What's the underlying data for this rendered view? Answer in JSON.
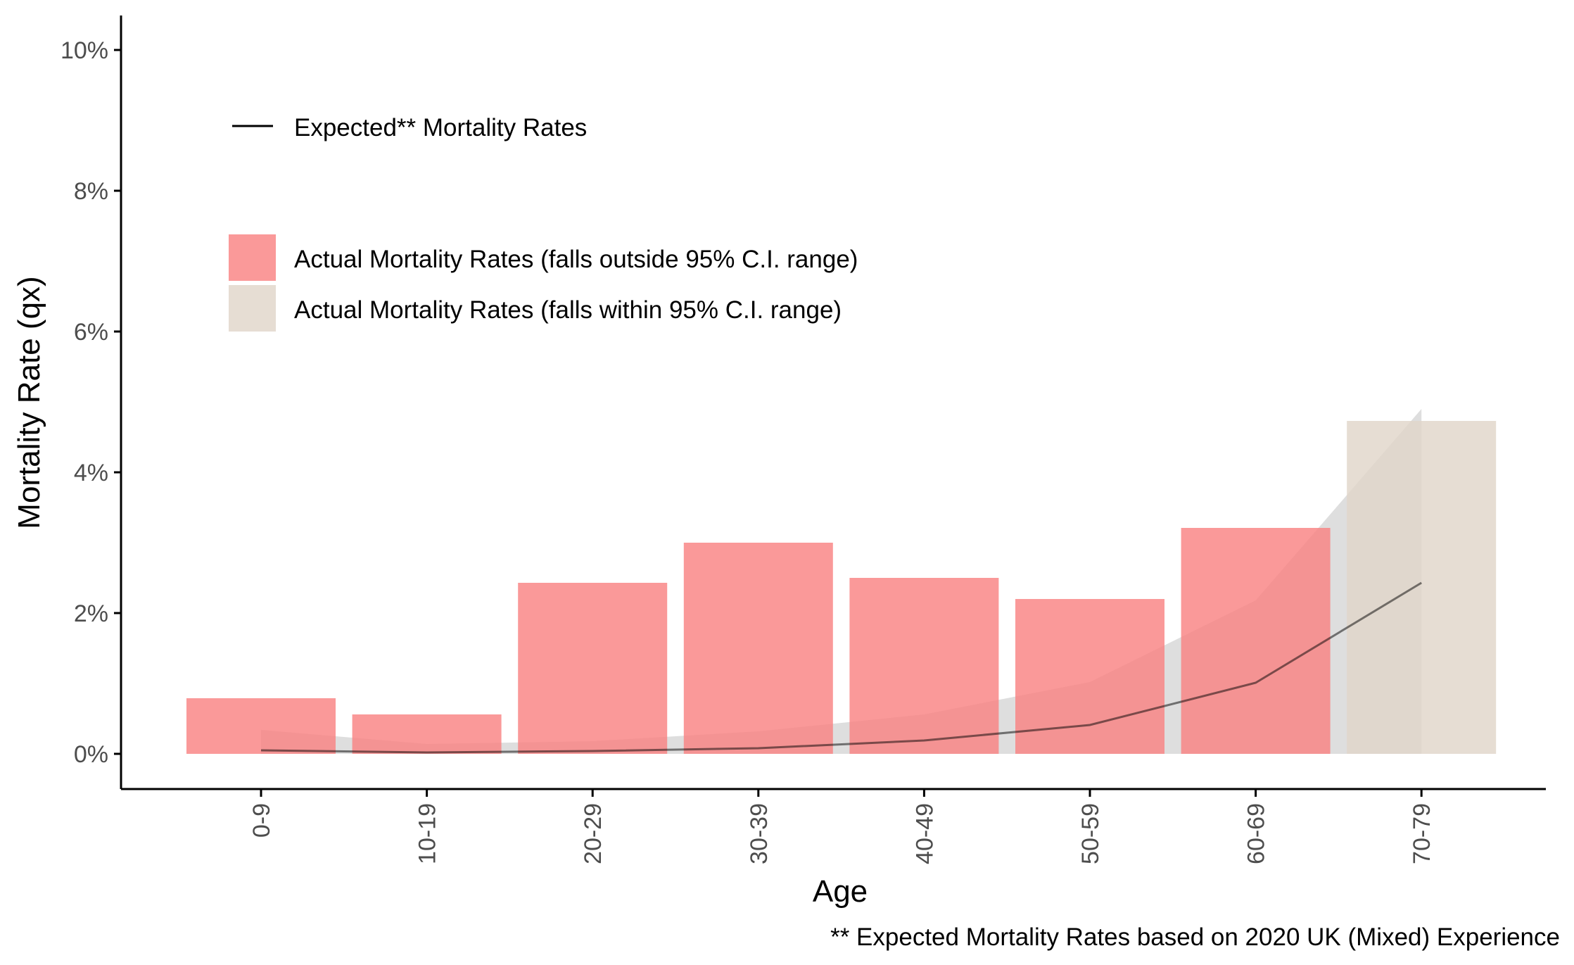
{
  "chart_data": {
    "type": "bar",
    "xlabel": "Age",
    "ylabel": "Mortality Rate (qx)",
    "caption": "** Expected Mortality Rates based on 2020 UK (Mixed) Experience",
    "categories": [
      "0-9",
      "10-19",
      "20-29",
      "30-39",
      "40-49",
      "50-59",
      "60-69",
      "70-79"
    ],
    "ylim": [
      0,
      0.1
    ],
    "yticks": [
      0,
      0.02,
      0.04,
      0.06,
      0.08,
      0.1
    ],
    "ytick_labels": [
      "0%",
      "2%",
      "4%",
      "6%",
      "8%",
      "10%"
    ],
    "grid": false,
    "legend_position": "top-left",
    "legend": {
      "line_label": "Expected** Mortality Rates",
      "fill_labels": [
        "Actual Mortality Rates (falls outside 95% C.I. range)",
        "Actual Mortality Rates (falls within 95% C.I. range)"
      ]
    },
    "series": [
      {
        "name": "Actual Mortality Rates",
        "kind": "bar",
        "values": [
          0.0079,
          0.0056,
          0.0243,
          0.03,
          0.025,
          0.022,
          0.0321,
          0.0473
        ],
        "ci_status": [
          "outside",
          "outside",
          "outside",
          "outside",
          "outside",
          "outside",
          "outside",
          "within"
        ]
      },
      {
        "name": "Expected** Mortality Rates",
        "kind": "line",
        "values": [
          0.0005,
          0.0002,
          0.0004,
          0.0008,
          0.0019,
          0.0041,
          0.0101,
          0.0243
        ]
      },
      {
        "name": "95% C.I.",
        "kind": "ribbon",
        "lower": [
          0.0,
          0.0,
          0.0,
          0.0,
          0.0,
          0.0,
          0.0,
          0.0
        ],
        "upper": [
          0.0034,
          0.0014,
          0.0018,
          0.0032,
          0.0056,
          0.0102,
          0.0218,
          0.049
        ]
      }
    ],
    "colors": {
      "outside": "#f98080",
      "within": "#e0d5c8",
      "line": "#000000",
      "ribbon": "#c8c8c8",
      "axis_text": "#4d4d4d"
    }
  }
}
